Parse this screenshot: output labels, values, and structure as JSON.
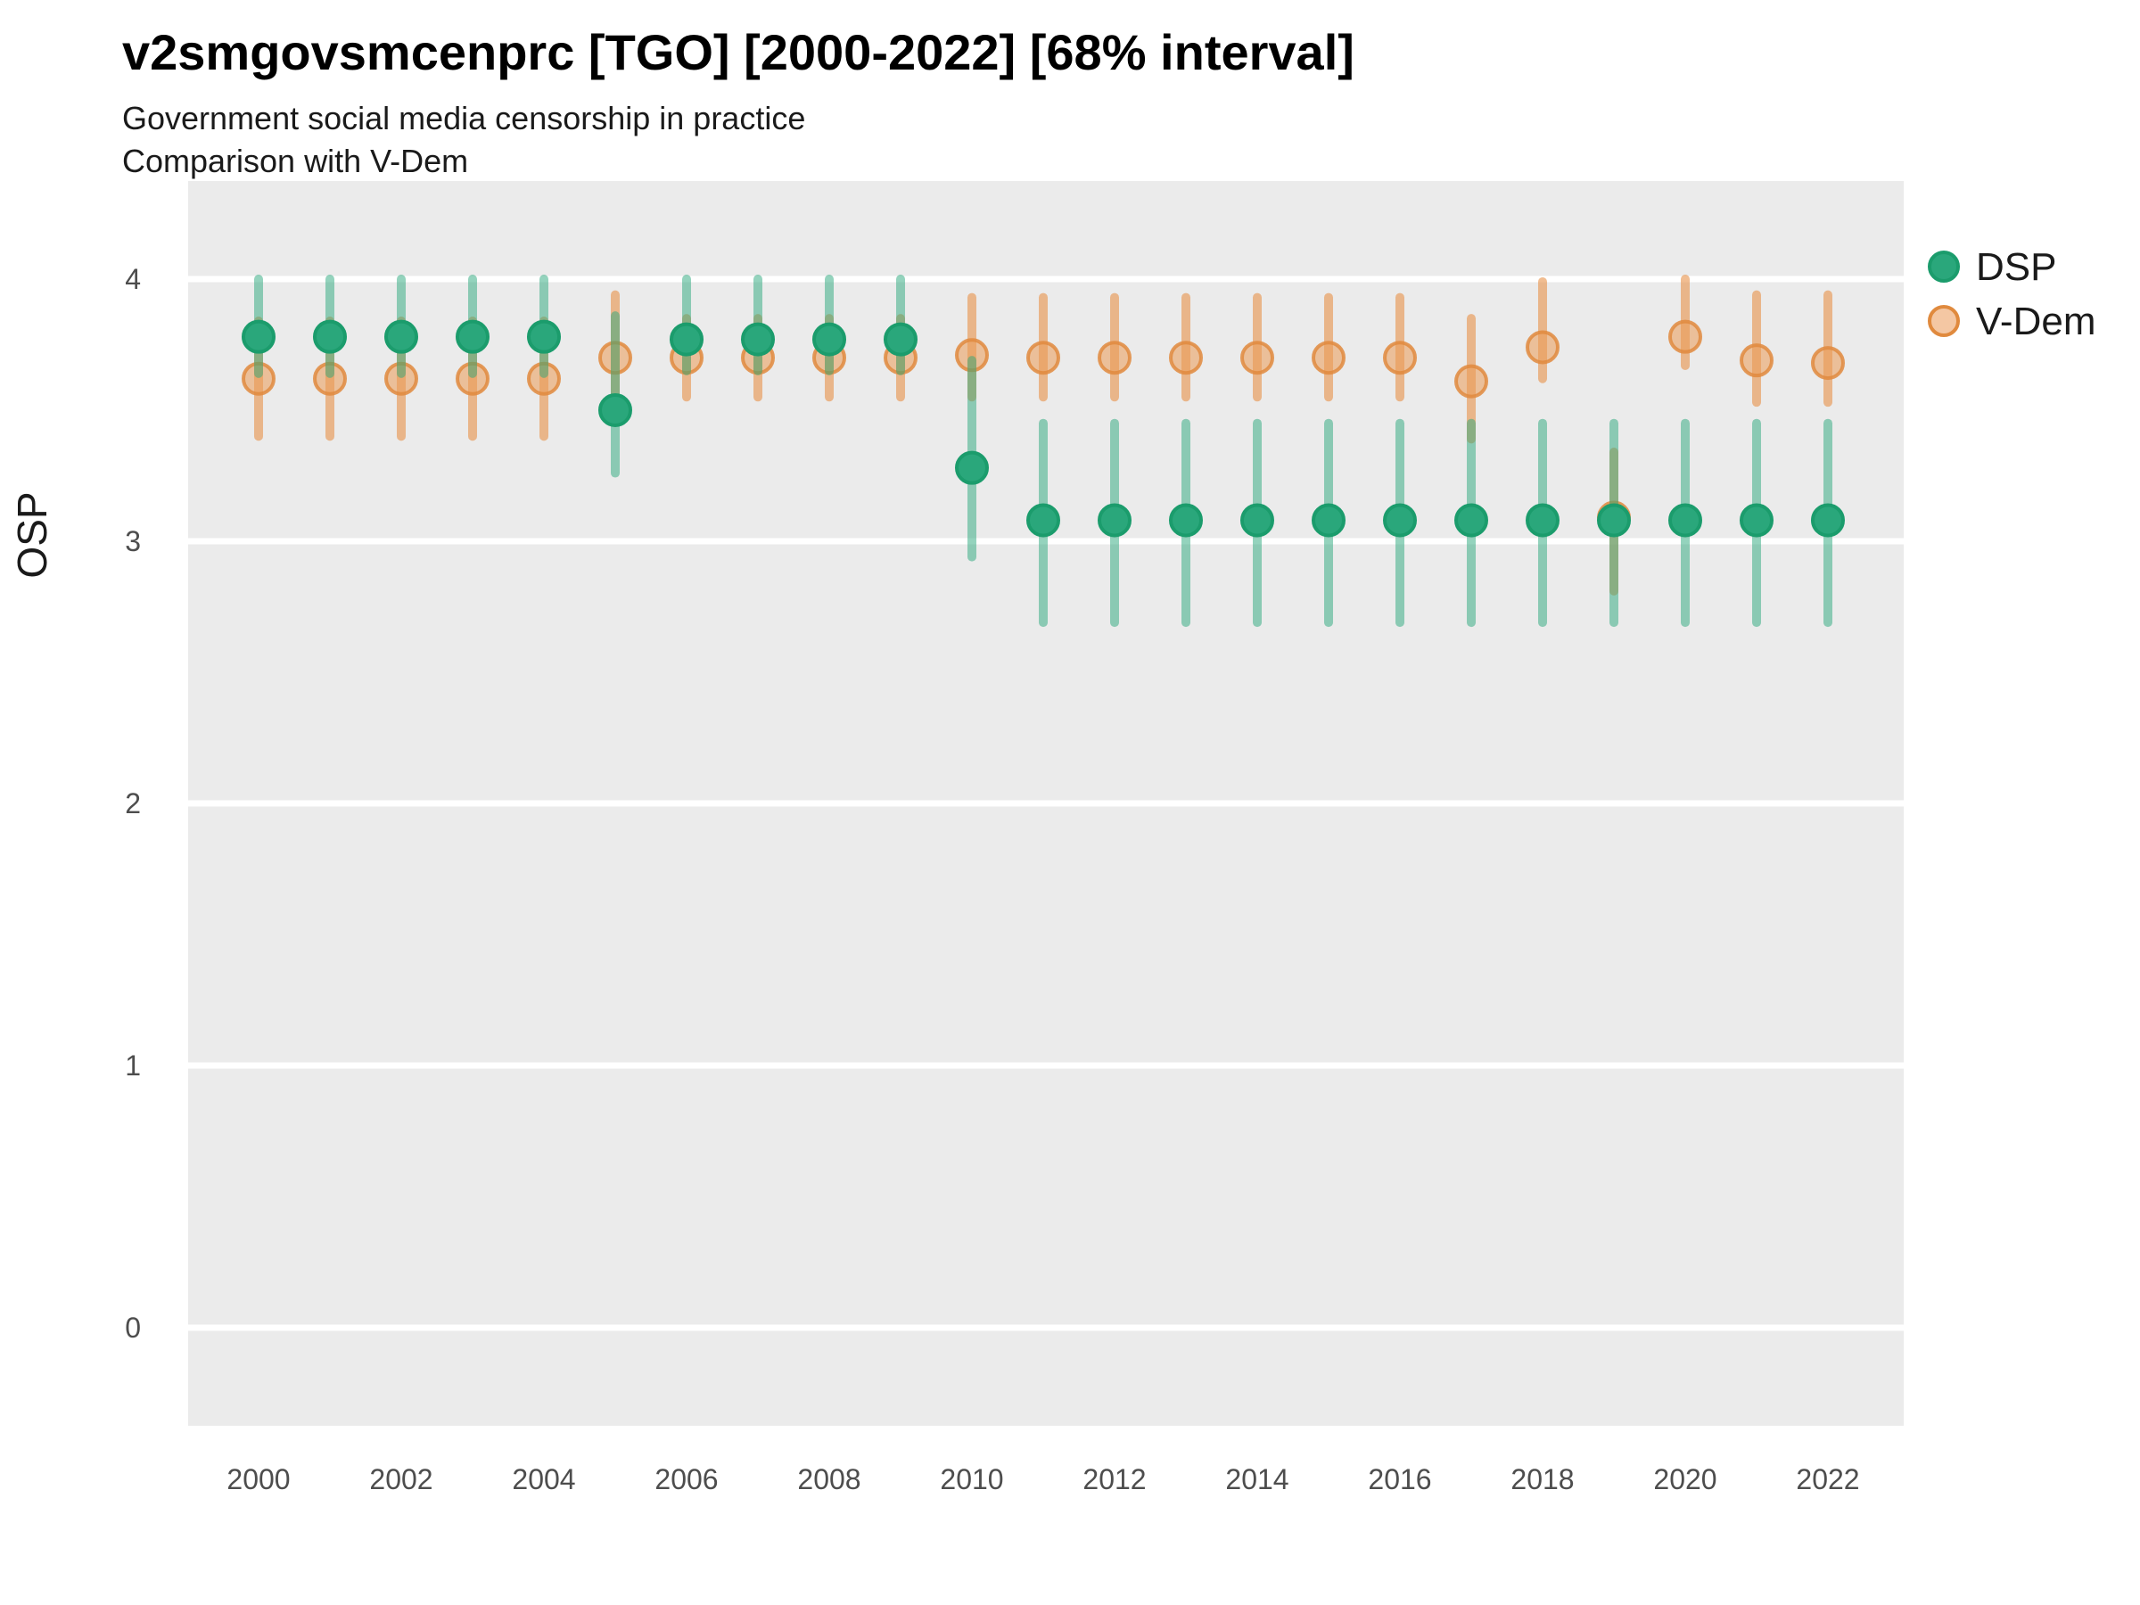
{
  "header": {
    "title": "v2smgovsmcenprc [TGO] [2000-2022] [68% interval]",
    "subtitle1": "Government social media censorship in practice",
    "subtitle2": "Comparison with V-Dem"
  },
  "y_axis": {
    "title": "OSP",
    "tick_labels": [
      "0",
      "1",
      "2",
      "3",
      "4"
    ]
  },
  "x_axis": {
    "tick_labels": [
      "2000",
      "2002",
      "2004",
      "2006",
      "2008",
      "2010",
      "2012",
      "2014",
      "2016",
      "2018",
      "2020",
      "2022"
    ]
  },
  "legend": {
    "items": [
      {
        "label": "DSP",
        "fill": "#2aa77b",
        "stroke": "#1b9c6c",
        "fill_opacity": 1
      },
      {
        "label": "V-Dem",
        "fill": "#eda265",
        "stroke": "#e08a3e",
        "fill_opacity": 0.6
      }
    ]
  },
  "colors": {
    "panel_bg": "#ebebeb",
    "gridline": "#ffffff",
    "dsp_point_fill": "#2aa77b",
    "dsp_point_stroke": "#1b9c6c",
    "dsp_bar": "rgba(42,167,123,0.50)",
    "vdem_point_fill": "rgba(235,154,86,0.55)",
    "vdem_point_stroke": "rgba(224,138,62,0.85)",
    "vdem_bar": "rgba(231,145,71,0.60)"
  },
  "chart_data": {
    "type": "pointrange-scatter",
    "title": "v2smgovsmcenprc [TGO] [2000-2022] [68% interval]",
    "interval": "68%",
    "xlabel": "",
    "ylabel": "OSP",
    "ylim": [
      -0.37,
      4.37
    ],
    "y_ticks": [
      0,
      1,
      2,
      3,
      4
    ],
    "x_ticks": [
      2000,
      2002,
      2004,
      2006,
      2008,
      2010,
      2012,
      2014,
      2016,
      2018,
      2020,
      2022
    ],
    "grid": "major-horizontal-white-on-gray",
    "legend_position": "right-top",
    "x": [
      2000,
      2001,
      2002,
      2003,
      2004,
      2005,
      2006,
      2007,
      2008,
      2009,
      2010,
      2011,
      2012,
      2013,
      2014,
      2015,
      2016,
      2017,
      2018,
      2019,
      2020,
      2021,
      2022
    ],
    "series": [
      {
        "name": "V-Dem",
        "draw_order": 1,
        "est": [
          3.62,
          3.62,
          3.62,
          3.62,
          3.62,
          3.7,
          3.7,
          3.7,
          3.7,
          3.7,
          3.71,
          3.7,
          3.7,
          3.7,
          3.7,
          3.7,
          3.7,
          3.61,
          3.74,
          3.09,
          3.78,
          3.69,
          3.68
        ],
        "lo": [
          3.4,
          3.4,
          3.4,
          3.4,
          3.4,
          3.56,
          3.55,
          3.55,
          3.55,
          3.55,
          3.55,
          3.55,
          3.55,
          3.55,
          3.55,
          3.55,
          3.55,
          3.39,
          3.62,
          2.81,
          3.67,
          3.53,
          3.53
        ],
        "hi": [
          3.84,
          3.84,
          3.84,
          3.84,
          3.84,
          3.94,
          3.85,
          3.85,
          3.85,
          3.85,
          3.93,
          3.93,
          3.93,
          3.93,
          3.93,
          3.93,
          3.93,
          3.85,
          3.99,
          3.34,
          4.0,
          3.94,
          3.94
        ]
      },
      {
        "name": "DSP",
        "draw_order": 2,
        "est": [
          3.78,
          3.78,
          3.78,
          3.78,
          3.78,
          3.5,
          3.77,
          3.77,
          3.77,
          3.77,
          3.28,
          3.08,
          3.08,
          3.08,
          3.08,
          3.08,
          3.08,
          3.08,
          3.08,
          3.08,
          3.08,
          3.08,
          3.08
        ],
        "lo": [
          3.64,
          3.64,
          3.64,
          3.64,
          3.64,
          3.26,
          3.65,
          3.65,
          3.65,
          3.65,
          2.94,
          2.69,
          2.69,
          2.69,
          2.69,
          2.69,
          2.69,
          2.69,
          2.69,
          2.69,
          2.69,
          2.69,
          2.69
        ],
        "hi": [
          4.0,
          4.0,
          4.0,
          4.0,
          4.0,
          3.86,
          4.0,
          4.0,
          4.0,
          4.0,
          3.69,
          3.45,
          3.45,
          3.45,
          3.45,
          3.45,
          3.45,
          3.45,
          3.45,
          3.45,
          3.45,
          3.45,
          3.45
        ]
      }
    ]
  }
}
